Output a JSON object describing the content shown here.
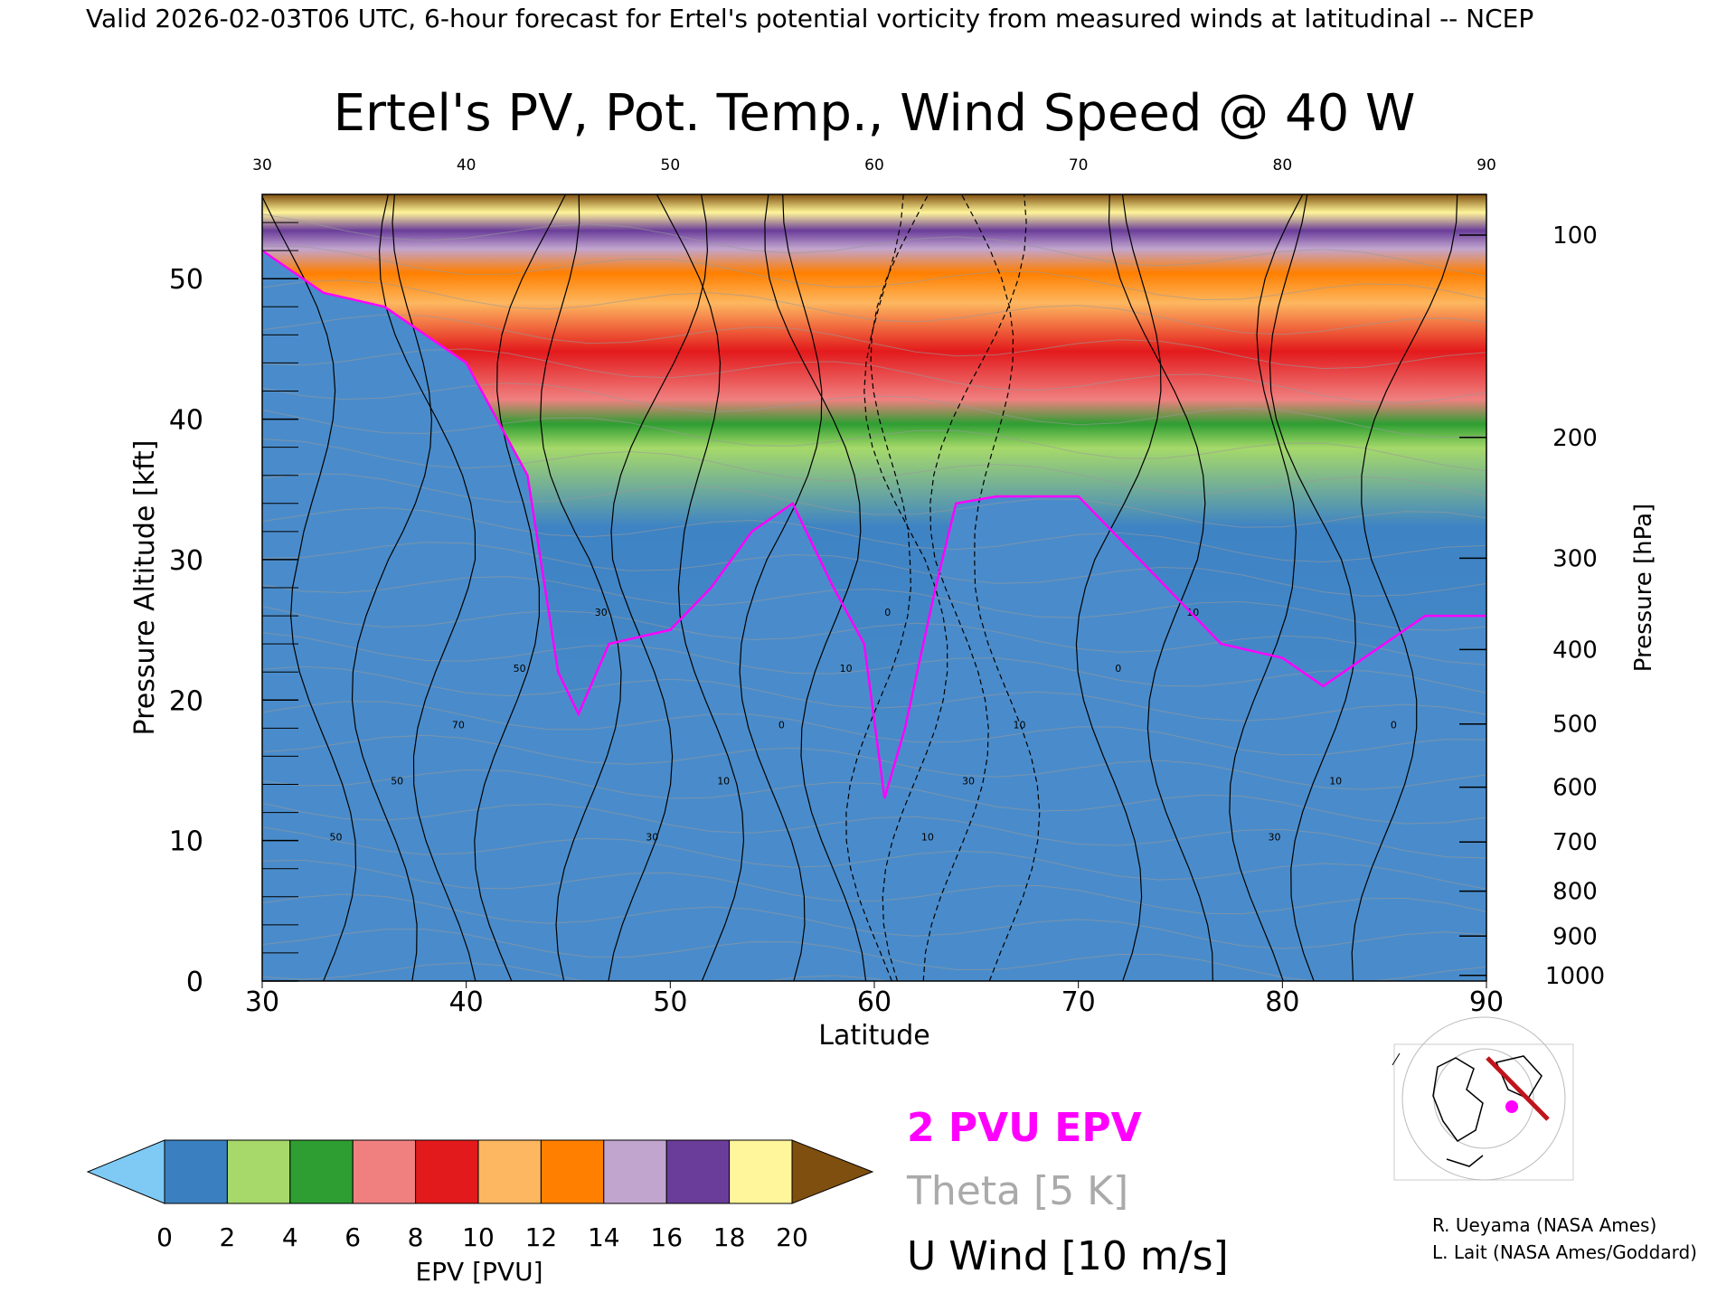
{
  "header": {
    "valid_line": "Valid 2026-02-03T06 UTC, 6-hour forecast for Ertel's potential vorticity from measured winds at latitudinal -- NCEP"
  },
  "chart_data": {
    "type": "heatmap",
    "title": "Ertel's PV, Pot. Temp., Wind Speed @ 40 W",
    "xlabel": "Latitude",
    "ylabel": "Pressure Altitude [kft]",
    "y2label": "Pressure [hPa]",
    "xlim": [
      30,
      90
    ],
    "ylim": [
      0,
      56
    ],
    "x_ticks": [
      "30",
      "40",
      "50",
      "60",
      "70",
      "80",
      "90"
    ],
    "top_ticks": [
      "30",
      "40",
      "50",
      "60",
      "70",
      "80",
      "90"
    ],
    "y_ticks": [
      "0",
      "10",
      "20",
      "30",
      "40",
      "50"
    ],
    "pressure_ticks": [
      {
        "label": "100",
        "kft": 53.1
      },
      {
        "label": "200",
        "kft": 38.7
      },
      {
        "label": "300",
        "kft": 30.1
      },
      {
        "label": "400",
        "kft": 23.6
      },
      {
        "label": "500",
        "kft": 18.3
      },
      {
        "label": "600",
        "kft": 13.8
      },
      {
        "label": "700",
        "kft": 9.9
      },
      {
        "label": "800",
        "kft": 6.4
      },
      {
        "label": "900",
        "kft": 3.2
      },
      {
        "label": "1000",
        "kft": 0.4
      }
    ],
    "tropopause_2pvu_kft": [
      {
        "lat": 30,
        "kft": 52
      },
      {
        "lat": 33,
        "kft": 49
      },
      {
        "lat": 36,
        "kft": 48
      },
      {
        "lat": 40,
        "kft": 44
      },
      {
        "lat": 43,
        "kft": 36
      },
      {
        "lat": 44.5,
        "kft": 22
      },
      {
        "lat": 45.5,
        "kft": 19
      },
      {
        "lat": 47,
        "kft": 24
      },
      {
        "lat": 50,
        "kft": 25
      },
      {
        "lat": 52,
        "kft": 28
      },
      {
        "lat": 54,
        "kft": 32
      },
      {
        "lat": 56,
        "kft": 34
      },
      {
        "lat": 58,
        "kft": 28
      },
      {
        "lat": 59.5,
        "kft": 24
      },
      {
        "lat": 60.5,
        "kft": 13
      },
      {
        "lat": 61.5,
        "kft": 18
      },
      {
        "lat": 63,
        "kft": 28
      },
      {
        "lat": 64,
        "kft": 34
      },
      {
        "lat": 66,
        "kft": 34.5
      },
      {
        "lat": 70,
        "kft": 34.5
      },
      {
        "lat": 73,
        "kft": 30
      },
      {
        "lat": 75,
        "kft": 27
      },
      {
        "lat": 77,
        "kft": 24
      },
      {
        "lat": 80,
        "kft": 23
      },
      {
        "lat": 82,
        "kft": 21
      },
      {
        "lat": 85,
        "kft": 24
      },
      {
        "lat": 87,
        "kft": 26
      },
      {
        "lat": 90,
        "kft": 26
      }
    ],
    "wind_contour_labels": [
      "50",
      "50",
      "70",
      "50",
      "30",
      "30",
      "10",
      "0",
      "10",
      "0",
      "10",
      "30",
      "10",
      "0",
      "10",
      "30",
      "10",
      "0"
    ],
    "colorbar": {
      "label": "EPV [PVU]",
      "ticks": [
        "0",
        "2",
        "4",
        "6",
        "8",
        "10",
        "12",
        "14",
        "16",
        "18",
        "20"
      ],
      "colors": [
        "#3a7fbf",
        "#a6d96a",
        "#2e9e32",
        "#f08080",
        "#e31a1c",
        "#fdb760",
        "#ff7f00",
        "#c2a5cf",
        "#6a3d9a",
        "#fff59a"
      ],
      "under_color": "#7fcaf5",
      "over_color": "#7f4f0f"
    },
    "legend": [
      {
        "label": "2 PVU EPV",
        "color": "#ff00ff"
      },
      {
        "label": "Theta [5 K]",
        "color": "#aaaaaa"
      },
      {
        "label": "U Wind [10 m/s]",
        "color": "#000000"
      }
    ]
  },
  "map_inset": {
    "section_color": "#c0141c",
    "marker_color": "#ff00ff"
  },
  "credits": {
    "line1": "R. Ueyama (NASA Ames)",
    "line2": "L. Lait (NASA Ames/Goddard)"
  }
}
